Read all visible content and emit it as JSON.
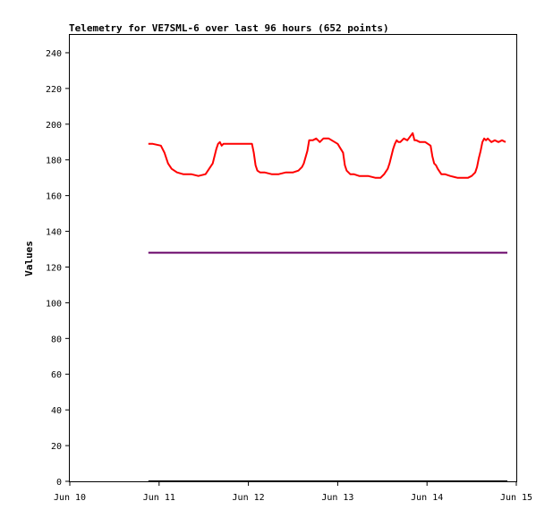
{
  "chart_data": {
    "type": "line",
    "title": "Telemetry for VE7SML-6 over last 96 hours (652 points)",
    "xlabel": "",
    "ylabel": "Values",
    "xlim": [
      "Jun 10",
      "Jun 15"
    ],
    "ylim": [
      0,
      250
    ],
    "x_ticks": [
      "Jun 10",
      "Jun 11",
      "Jun 12",
      "Jun 13",
      "Jun 14",
      "Jun 15"
    ],
    "y_ticks": [
      0,
      20,
      40,
      60,
      80,
      100,
      120,
      140,
      160,
      180,
      200,
      220,
      240
    ],
    "grid": false,
    "legend": "none",
    "series": [
      {
        "color": "#ff0000",
        "x": [
          10.88,
          10.93,
          11.02,
          11.06,
          11.1,
          11.14,
          11.2,
          11.27,
          11.36,
          11.44,
          11.52,
          11.56,
          11.6,
          11.62,
          11.64,
          11.66,
          11.68,
          11.7,
          11.72,
          11.74,
          11.76,
          11.8,
          11.84,
          11.92,
          12.04,
          12.06,
          12.08,
          12.1,
          12.13,
          12.18,
          12.26,
          12.34,
          12.42,
          12.5,
          12.56,
          12.6,
          12.62,
          12.66,
          12.68,
          12.7,
          12.72,
          12.76,
          12.8,
          12.84,
          12.9,
          13.0,
          13.06,
          13.08,
          13.1,
          13.12,
          13.14,
          13.18,
          13.24,
          13.34,
          13.42,
          13.48,
          13.52,
          13.56,
          13.58,
          13.6,
          13.62,
          13.64,
          13.66,
          13.68,
          13.7,
          13.74,
          13.78,
          13.84,
          13.86,
          13.88,
          13.92,
          13.98,
          14.04,
          14.06,
          14.08,
          14.1,
          14.12,
          14.16,
          14.2,
          14.26,
          14.34,
          14.4,
          14.46,
          14.5,
          14.54,
          14.56,
          14.58,
          14.6,
          14.62,
          14.64,
          14.66,
          14.68,
          14.72,
          14.76,
          14.8,
          14.84,
          14.88
        ],
        "values": [
          189,
          189,
          188,
          184,
          178,
          175,
          173,
          172,
          172,
          171,
          172,
          175,
          178,
          182,
          186,
          189,
          190,
          188,
          189,
          189,
          189,
          189,
          189,
          189,
          189,
          184,
          177,
          174,
          173,
          173,
          172,
          172,
          173,
          173,
          174,
          176,
          178,
          185,
          191,
          191,
          191,
          192,
          190,
          192,
          192,
          189,
          184,
          177,
          174,
          173,
          172,
          172,
          171,
          171,
          170,
          170,
          172,
          175,
          178,
          182,
          186,
          189,
          191,
          190,
          190,
          192,
          191,
          195,
          191,
          191,
          190,
          190,
          188,
          182,
          178,
          177,
          175,
          172,
          172,
          171,
          170,
          170,
          170,
          171,
          173,
          176,
          181,
          185,
          190,
          192,
          191,
          192,
          190,
          191,
          190,
          191,
          190
        ]
      },
      {
        "color": "#660066",
        "x": [
          10.88,
          14.9
        ],
        "values": [
          128,
          128
        ]
      },
      {
        "color": "#000000",
        "x": [
          10.88,
          14.9
        ],
        "values": [
          0,
          0
        ]
      }
    ]
  }
}
